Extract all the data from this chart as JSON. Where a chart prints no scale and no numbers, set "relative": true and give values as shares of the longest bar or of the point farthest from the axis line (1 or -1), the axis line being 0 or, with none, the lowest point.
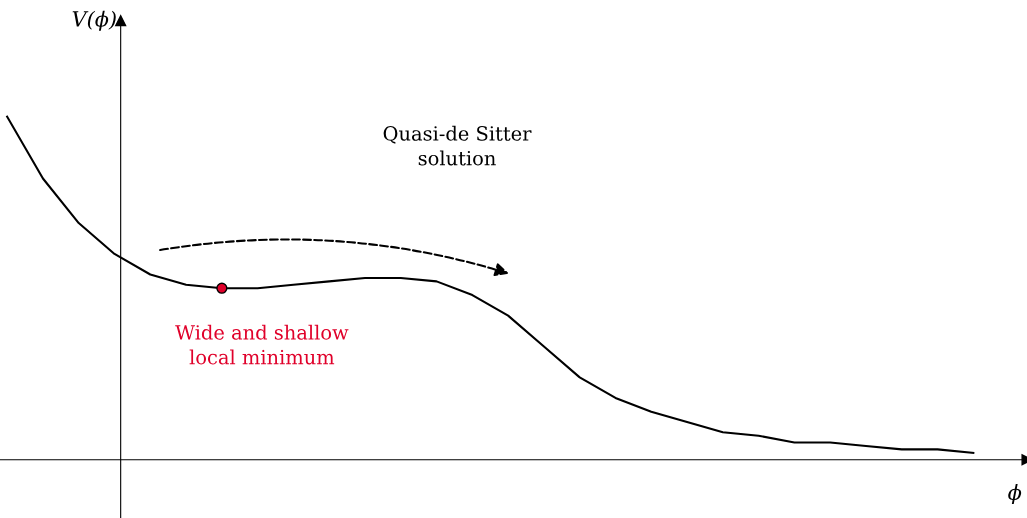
{
  "chart_data": {
    "type": "line",
    "relative": true,
    "xlabel": "ϕ",
    "ylabel": "V(ϕ)",
    "categories": [
      null,
      null,
      null,
      null,
      null,
      null,
      null,
      null,
      null,
      null,
      null,
      null,
      null,
      null,
      null,
      null,
      null,
      null,
      null,
      null,
      null,
      null,
      null,
      null,
      null,
      null,
      null,
      null
    ],
    "series": [
      {
        "color": "#000000",
        "marker": "none",
        "line_style": "solid",
        "values": [
          1.0,
          0.82,
          0.69,
          0.6,
          0.54,
          0.51,
          0.5,
          0.5,
          0.51,
          0.52,
          0.53,
          0.53,
          0.52,
          0.48,
          0.42,
          0.33,
          0.24,
          0.18,
          0.14,
          0.11,
          0.08,
          0.07,
          0.05,
          0.05,
          0.04,
          0.03,
          0.03,
          0.02
        ]
      }
    ],
    "annotations": [
      "Quasi-de Sitter\nsolution",
      "Wide and shallow\nlocal minimum"
    ],
    "legend": false,
    "grid": false
  }
}
